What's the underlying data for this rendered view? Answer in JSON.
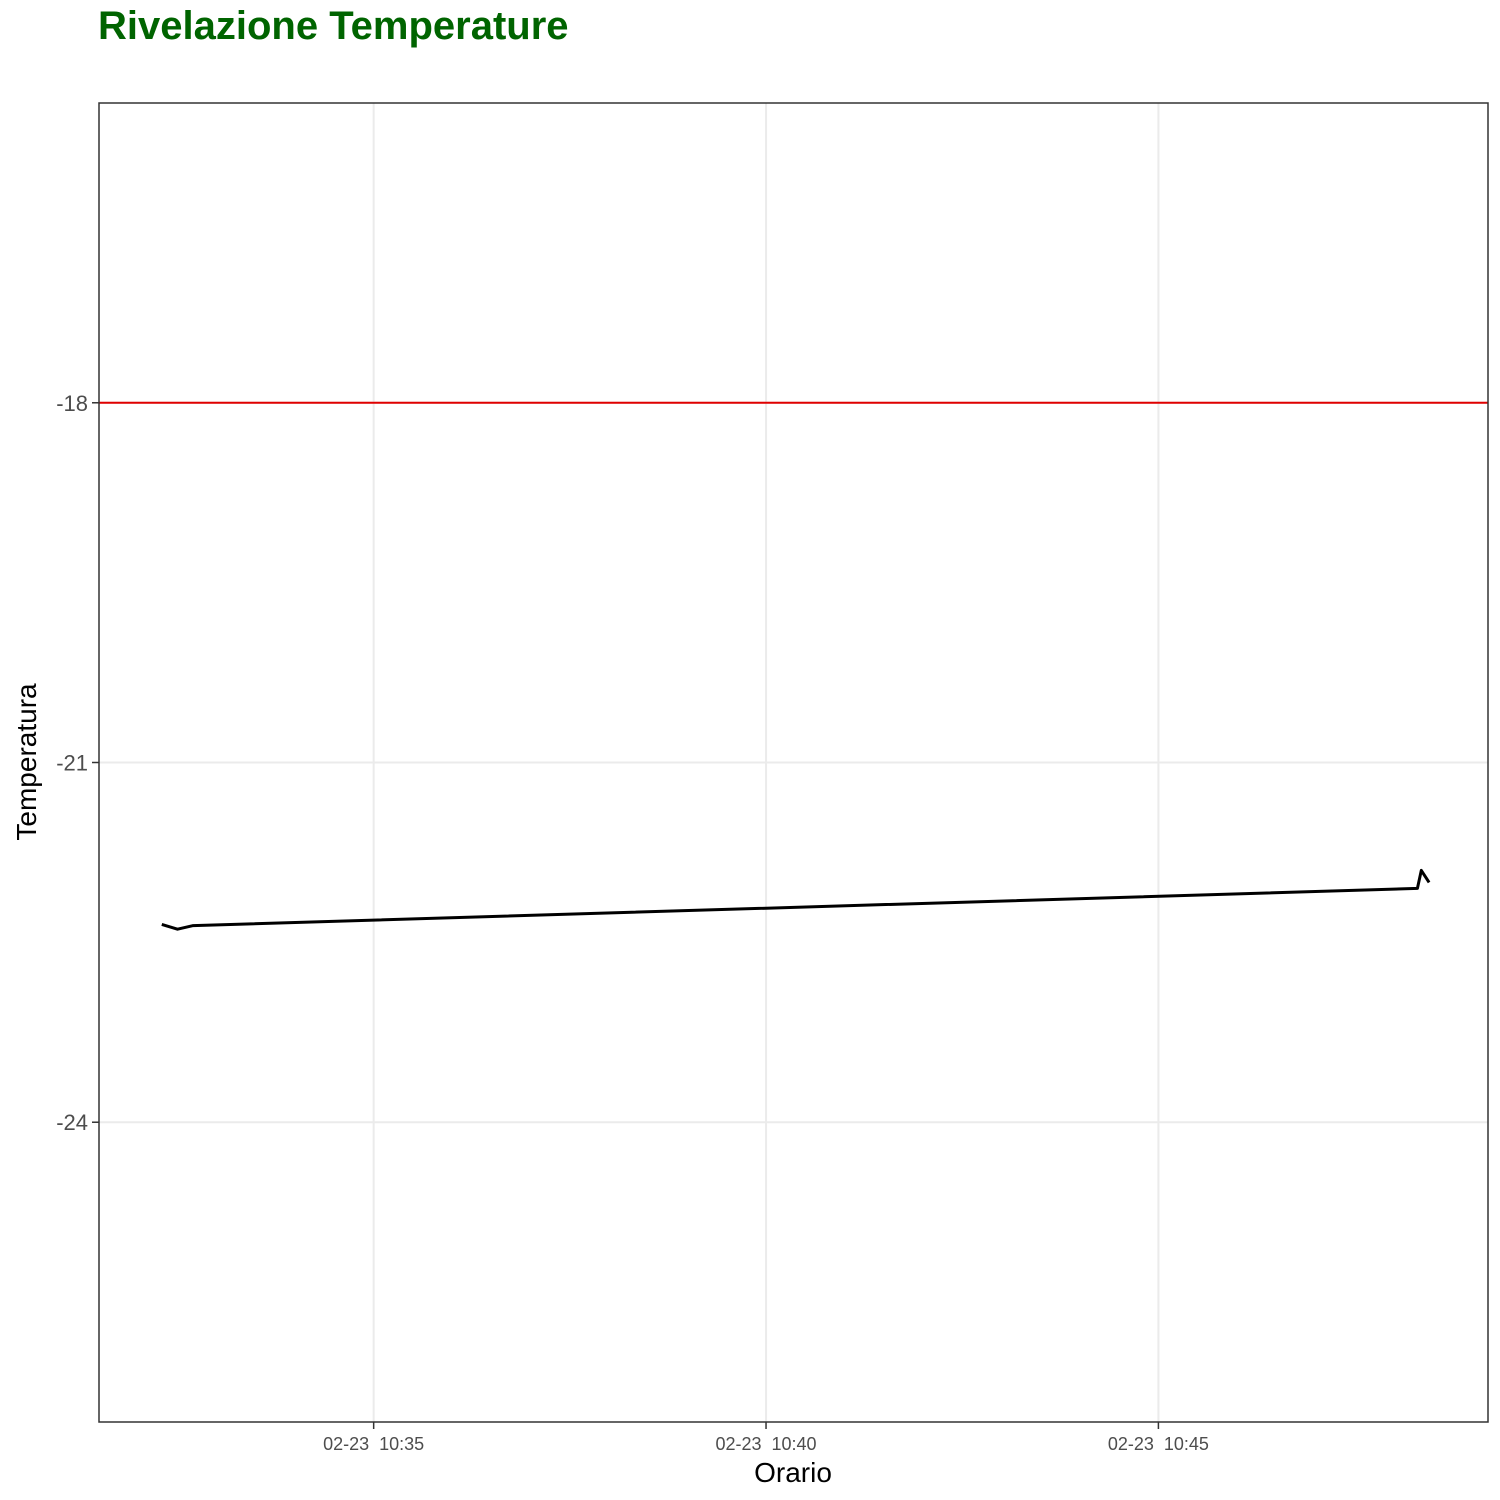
{
  "chart_data": {
    "type": "line",
    "title": "Rivelazione Temperature",
    "xlabel": "Orario",
    "ylabel": "Temperatura",
    "x_ticks": [
      {
        "t": "10:35",
        "label": "02-23  10:35"
      },
      {
        "t": "10:40",
        "label": "02-23  10:40"
      },
      {
        "t": "10:45",
        "label": "02-23  10:45"
      }
    ],
    "y_ticks": [
      -24,
      -21,
      -18
    ],
    "xlim": [
      "10:31:30",
      "10:49:12"
    ],
    "ylim": [
      -26.5,
      -15.5
    ],
    "grid": true,
    "threshold": {
      "value": -18,
      "color": "#e00000"
    },
    "series": [
      {
        "color": "#000000",
        "points": [
          {
            "t": "10:32:18",
            "y": -22.35
          },
          {
            "t": "10:32:30",
            "y": -22.39
          },
          {
            "t": "10:32:42",
            "y": -22.36
          },
          {
            "t": "10:48:18",
            "y": -22.05
          },
          {
            "t": "10:48:21",
            "y": -21.9
          },
          {
            "t": "10:48:24",
            "y": -21.95
          },
          {
            "t": "10:48:27",
            "y": -22.0
          }
        ]
      }
    ]
  },
  "colors": {
    "title": "#006400",
    "threshold": "#e00000",
    "line": "#000000",
    "grid": "#ebebeb",
    "panel_border": "#333333"
  }
}
